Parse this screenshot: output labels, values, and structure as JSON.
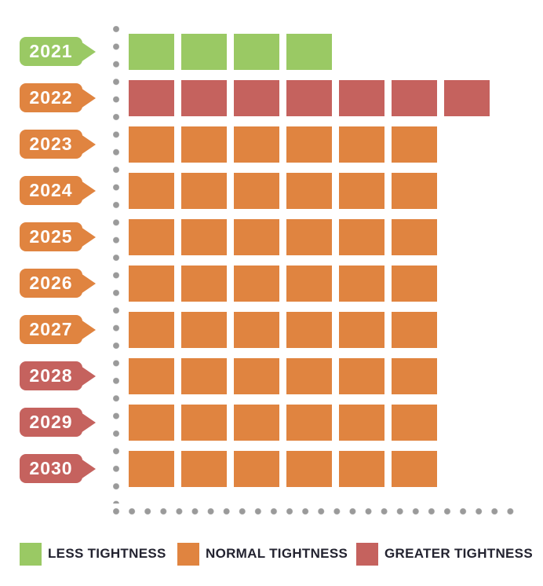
{
  "chart_data": {
    "type": "heatmap",
    "title": "",
    "xlabel": "",
    "ylabel": "",
    "categories": [
      "2021",
      "2022",
      "2023",
      "2024",
      "2025",
      "2026",
      "2027",
      "2028",
      "2029",
      "2030"
    ],
    "rows": [
      {
        "year": "2021",
        "label_level": "less",
        "squares_level": "less",
        "count": 4
      },
      {
        "year": "2022",
        "label_level": "normal",
        "squares_level": "greater",
        "count": 7
      },
      {
        "year": "2023",
        "label_level": "normal",
        "squares_level": "normal",
        "count": 6
      },
      {
        "year": "2024",
        "label_level": "normal",
        "squares_level": "normal",
        "count": 6
      },
      {
        "year": "2025",
        "label_level": "normal",
        "squares_level": "normal",
        "count": 6
      },
      {
        "year": "2026",
        "label_level": "normal",
        "squares_level": "normal",
        "count": 6
      },
      {
        "year": "2027",
        "label_level": "normal",
        "squares_level": "normal",
        "count": 6
      },
      {
        "year": "2028",
        "label_level": "greater",
        "squares_level": "normal",
        "count": 6
      },
      {
        "year": "2029",
        "label_level": "greater",
        "squares_level": "normal",
        "count": 6
      },
      {
        "year": "2030",
        "label_level": "greater",
        "squares_level": "normal",
        "count": 6
      }
    ],
    "legend": [
      {
        "key": "less",
        "label": "LESS TIGHTNESS"
      },
      {
        "key": "normal",
        "label": "NORMAL TIGHTNESS"
      },
      {
        "key": "greater",
        "label": "GREATER TIGHTNESS"
      }
    ],
    "colors": {
      "less": "#9AC964",
      "normal": "#E08440",
      "greater": "#C5625E",
      "axis_dots": "#9A9A9A",
      "legend_text": "#232330"
    },
    "layout": {
      "legend_position": "bottom",
      "axes_style": "dotted",
      "grid": false,
      "x_tick_labels": []
    }
  }
}
